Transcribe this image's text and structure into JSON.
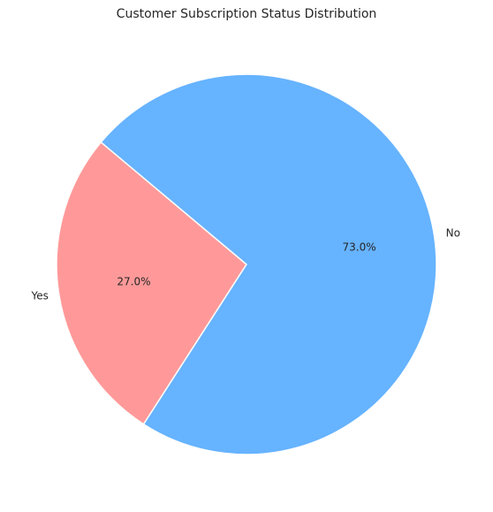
{
  "chart_data": {
    "type": "pie",
    "title": "Customer Subscription Status Distribution",
    "categories": [
      "Yes",
      "No"
    ],
    "values": [
      27.0,
      73.0
    ],
    "value_labels": [
      "27.0%",
      "73.0%"
    ],
    "colors": [
      "#ff9999",
      "#66b3ff"
    ],
    "start_angle_deg": 140,
    "direction": "counterclockwise",
    "legend": "none"
  }
}
